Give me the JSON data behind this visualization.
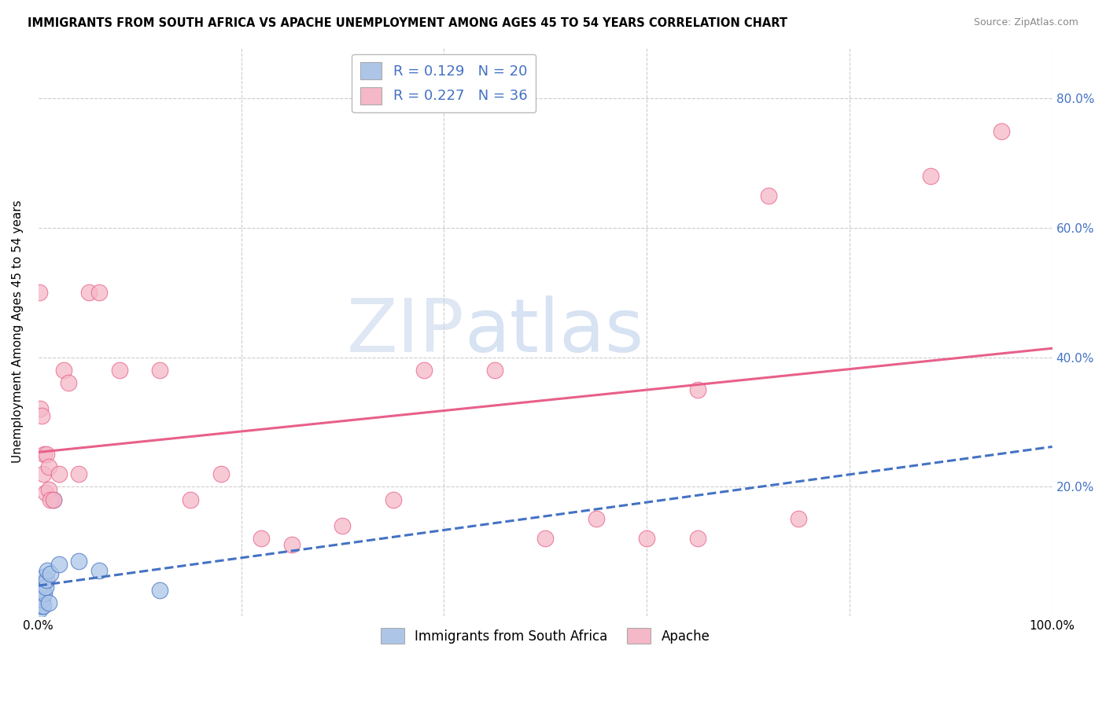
{
  "title": "IMMIGRANTS FROM SOUTH AFRICA VS APACHE UNEMPLOYMENT AMONG AGES 45 TO 54 YEARS CORRELATION CHART",
  "source": "Source: ZipAtlas.com",
  "ylabel": "Unemployment Among Ages 45 to 54 years",
  "xlabel": "",
  "blue_label": "Immigrants from South Africa",
  "pink_label": "Apache",
  "blue_R": 0.129,
  "blue_N": 20,
  "pink_R": 0.227,
  "pink_N": 36,
  "blue_color": "#adc6e8",
  "blue_line_color": "#4472c4",
  "pink_color": "#f5b8c8",
  "pink_line_color": "#e8608a",
  "background_color": "#ffffff",
  "grid_color": "#cccccc",
  "xlim": [
    0,
    1.0
  ],
  "ylim": [
    0,
    0.88
  ],
  "blue_x": [
    0.001,
    0.002,
    0.003,
    0.003,
    0.004,
    0.004,
    0.005,
    0.005,
    0.006,
    0.006,
    0.007,
    0.008,
    0.009,
    0.01,
    0.012,
    0.015,
    0.02,
    0.04,
    0.06,
    0.12
  ],
  "blue_y": [
    0.01,
    0.02,
    0.015,
    0.03,
    0.025,
    0.04,
    0.05,
    0.015,
    0.035,
    0.06,
    0.045,
    0.055,
    0.07,
    0.02,
    0.065,
    0.18,
    0.08,
    0.085,
    0.07,
    0.04
  ],
  "pink_x": [
    0.001,
    0.002,
    0.003,
    0.005,
    0.006,
    0.007,
    0.008,
    0.01,
    0.01,
    0.012,
    0.015,
    0.02,
    0.025,
    0.03,
    0.04,
    0.05,
    0.06,
    0.08,
    0.12,
    0.15,
    0.18,
    0.22,
    0.25,
    0.3,
    0.35,
    0.38,
    0.45,
    0.5,
    0.55,
    0.6,
    0.65,
    0.65,
    0.72,
    0.75,
    0.88,
    0.95
  ],
  "pink_y": [
    0.5,
    0.32,
    0.31,
    0.22,
    0.25,
    0.19,
    0.25,
    0.23,
    0.195,
    0.18,
    0.18,
    0.22,
    0.38,
    0.36,
    0.22,
    0.5,
    0.5,
    0.38,
    0.38,
    0.18,
    0.22,
    0.12,
    0.11,
    0.14,
    0.18,
    0.38,
    0.38,
    0.12,
    0.15,
    0.12,
    0.12,
    0.35,
    0.65,
    0.15,
    0.68,
    0.75
  ],
  "watermark_zip": "ZIP",
  "watermark_atlas": "atlas"
}
